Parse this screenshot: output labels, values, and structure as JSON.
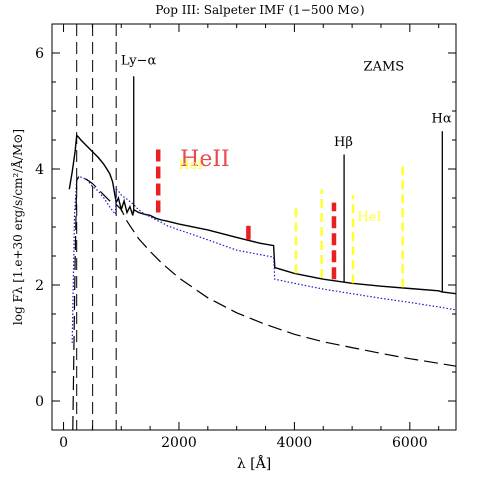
{
  "chart_data": {
    "type": "line",
    "title": "Pop III: Salpeter IMF (1−500 M⊙)",
    "xlabel": "λ [Å]",
    "ylabel": "log Fλ [1.e+30 erg/s/cm²/Å/M⊙]",
    "xlim": [
      -200,
      6800
    ],
    "ylim": [
      -0.5,
      6.5
    ],
    "x_ticks": [
      0,
      2000,
      4000,
      6000
    ],
    "y_ticks": [
      0,
      2,
      4,
      6
    ],
    "grid": false,
    "annotations": [
      {
        "text": "ZAMS",
        "x": 5550,
        "y": 5.7,
        "color": "#000000"
      },
      {
        "text": "Ly−α",
        "x": 1300,
        "y": 5.8,
        "color": "#000000"
      },
      {
        "text": "HeII",
        "x": 2450,
        "y": 4.05,
        "color": "#e8484f"
      },
      {
        "text": "HeI",
        "x": 2200,
        "y": 4.0,
        "color": "#ffff30"
      },
      {
        "text": "HeI",
        "x": 5300,
        "y": 3.1,
        "color": "#ffff30"
      },
      {
        "text": "Hβ",
        "x": 4850,
        "y": 4.4,
        "color": "#000000"
      },
      {
        "text": "Hα",
        "x": 6550,
        "y": 4.8,
        "color": "#000000"
      }
    ],
    "series": [
      {
        "style": "solid",
        "color": "#000000",
        "x": [
          100,
          150,
          200,
          228,
          260,
          300,
          400,
          500,
          600,
          700,
          800,
          850,
          890,
          912,
          950,
          1000,
          1050,
          1100,
          1150,
          1200,
          1216,
          1250,
          1300,
          1400,
          1500,
          1600,
          1700,
          1800,
          2000,
          2500,
          3000,
          3400,
          3640,
          3660,
          4000,
          4500,
          5000,
          5500,
          6000,
          6500,
          6560,
          6800
        ],
        "y": [
          3.65,
          3.95,
          4.3,
          4.58,
          4.55,
          4.5,
          4.4,
          4.3,
          4.2,
          4.08,
          3.92,
          3.78,
          3.55,
          3.42,
          3.5,
          3.3,
          3.45,
          3.25,
          3.35,
          3.2,
          3.3,
          3.28,
          3.25,
          3.22,
          3.2,
          3.15,
          3.12,
          3.1,
          3.05,
          2.95,
          2.82,
          2.72,
          2.68,
          2.3,
          2.2,
          2.1,
          2.03,
          1.98,
          1.94,
          1.9,
          1.88,
          1.85
        ]
      },
      {
        "style": "dotted",
        "color": "#1a1ad0",
        "x": [
          150,
          190,
          228,
          260,
          300,
          400,
          500,
          600,
          700,
          800,
          850,
          900,
          912,
          950,
          1000,
          1100,
          1200,
          1300,
          1400,
          1500,
          1600,
          1700,
          1800,
          2000,
          2500,
          3000,
          3640,
          3660,
          4000,
          4500,
          5000,
          5500,
          6000,
          6500,
          6800
        ],
        "y": [
          1.0,
          3.2,
          3.82,
          3.85,
          3.86,
          3.82,
          3.7,
          3.62,
          3.5,
          3.35,
          3.28,
          3.22,
          3.65,
          3.62,
          3.55,
          3.48,
          3.4,
          3.3,
          3.22,
          3.18,
          3.12,
          3.08,
          3.02,
          2.95,
          2.78,
          2.6,
          2.48,
          2.1,
          2.03,
          1.93,
          1.85,
          1.77,
          1.7,
          1.62,
          1.57
        ]
      },
      {
        "style": "dashed",
        "color": "#000000",
        "x": [
          160,
          200,
          228,
          260,
          300,
          400,
          500,
          600,
          700,
          800,
          900,
          1000,
          1100,
          1200,
          1300,
          1500,
          1700,
          2000,
          2500,
          3000,
          3500,
          4000,
          4500,
          5000,
          5500,
          6000,
          6500,
          6800
        ],
        "y": [
          -0.5,
          2.4,
          3.8,
          3.86,
          3.85,
          3.82,
          3.75,
          3.65,
          3.55,
          3.45,
          3.4,
          3.3,
          3.1,
          2.95,
          2.8,
          2.58,
          2.38,
          2.12,
          1.78,
          1.52,
          1.32,
          1.15,
          1.02,
          0.92,
          0.82,
          0.73,
          0.65,
          0.6
        ]
      }
    ],
    "vertical_dashed_lines_x": [
      228,
      504,
      912
    ],
    "emission_lines": [
      {
        "name": "Ly−α",
        "x": 1216,
        "y0": 3.25,
        "y1": 5.6,
        "color": "#000000",
        "style": "solid"
      },
      {
        "name": "HeII",
        "x": 1640,
        "y0": 3.25,
        "y1": 4.35,
        "color": "#e82020",
        "style": "dashed-thick"
      },
      {
        "name": "HeII",
        "x": 3203,
        "y0": 2.78,
        "y1": 3.02,
        "color": "#e82020",
        "style": "thick"
      },
      {
        "name": "HeII",
        "x": 4686,
        "y0": 2.1,
        "y1": 3.42,
        "color": "#e82020",
        "style": "dashed-thick"
      },
      {
        "name": "HeI",
        "x": 4026,
        "y0": 2.2,
        "y1": 3.35,
        "color": "#ffff30",
        "style": "dashed"
      },
      {
        "name": "HeI",
        "x": 4471,
        "y0": 2.12,
        "y1": 3.65,
        "color": "#ffff30",
        "style": "dashed"
      },
      {
        "name": "HeI",
        "x": 5016,
        "y0": 2.03,
        "y1": 3.55,
        "color": "#ffff30",
        "style": "dashed"
      },
      {
        "name": "HeI",
        "x": 5876,
        "y0": 1.96,
        "y1": 4.05,
        "color": "#ffff30",
        "style": "dashed"
      },
      {
        "name": "Hβ",
        "x": 4861,
        "y0": 2.05,
        "y1": 4.25,
        "color": "#000000",
        "style": "solid"
      },
      {
        "name": "Hα",
        "x": 6563,
        "y0": 1.88,
        "y1": 4.65,
        "color": "#000000",
        "style": "solid"
      }
    ]
  }
}
